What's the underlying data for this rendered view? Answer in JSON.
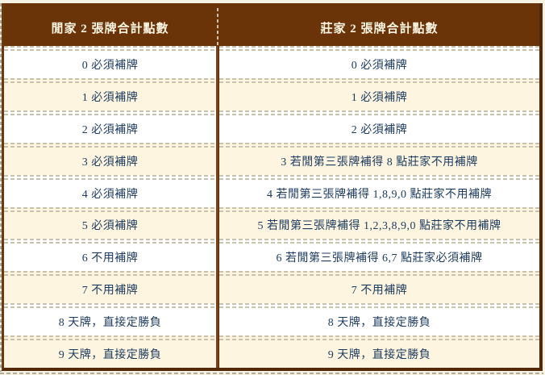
{
  "table": {
    "header_left": "閒家 2 張牌合計點數",
    "header_right": "莊家 2 張牌合計點數",
    "rows": [
      {
        "point": "0",
        "left": "0 必須補牌",
        "right": "0 必須補牌"
      },
      {
        "point": "1",
        "left": "1 必須補牌",
        "right": "1 必須補牌"
      },
      {
        "point": "2",
        "left": "2 必須補牌",
        "right": "2 必須補牌"
      },
      {
        "point": "3",
        "left": "3 必須補牌",
        "right": "3 若閒第三張牌補得 8 點莊家不用補牌"
      },
      {
        "point": "4",
        "left": "4 必須補牌",
        "right": "4 若閒第三張牌補得 1,8,9,0 點莊家不用補牌"
      },
      {
        "point": "5",
        "left": "5 必須補牌",
        "right": "5 若閒第三張牌補得 1,2,3,8,9,0 點莊家不用補牌"
      },
      {
        "point": "6",
        "left": "6 不用補牌",
        "right": "6 若閒第三張牌補得 6,7 點莊家必須補牌"
      },
      {
        "point": "7",
        "left": "7 不用補牌",
        "right": "7 不用補牌"
      },
      {
        "point": "8",
        "left": "8 天牌，直接定勝負",
        "right": "8 天牌，直接定勝負"
      },
      {
        "point": "9",
        "left": "9 天牌，直接定勝負",
        "right": "9 天牌，直接定勝負"
      }
    ]
  },
  "colors": {
    "header_bg": "#6A3408",
    "header_text": "#FDF6E3",
    "border_dark": "#53290A",
    "border_mid": "#6B3A12",
    "divider": "#7A421A",
    "row_cream": "#FDF5DF",
    "row_white": "#FFFFFF",
    "page_bg": "#F7F3E3",
    "dash": "#C8C1AC",
    "edge_dash": "#B3AC9C",
    "text": "#1B3A5F"
  }
}
